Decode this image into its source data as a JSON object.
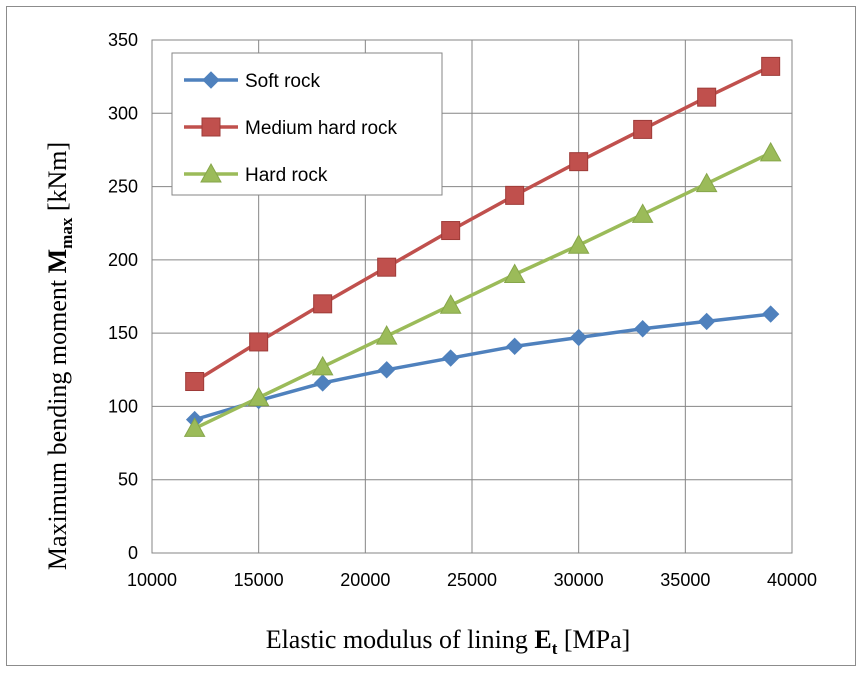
{
  "chart_data": {
    "type": "line",
    "xlabel": {
      "main": "Elastic modulus of lining ",
      "sym": "E",
      "sub": "t",
      "unit": " [MPa]"
    },
    "ylabel": {
      "main": "Maximum bending moment ",
      "sym": "M",
      "sub": "max",
      "unit": " [kNm]"
    },
    "xlim": [
      10000,
      40000
    ],
    "ylim": [
      0,
      350
    ],
    "xticks": [
      10000,
      15000,
      20000,
      25000,
      30000,
      35000,
      40000
    ],
    "yticks": [
      0,
      50,
      100,
      150,
      200,
      250,
      300,
      350
    ],
    "grid": true,
    "legend_position": "top-left",
    "x": [
      12000,
      15000,
      18000,
      21000,
      24000,
      27000,
      30000,
      33000,
      36000,
      39000
    ],
    "series": [
      {
        "name": "Soft rock",
        "color": "#4f81bd",
        "marker": "diamond",
        "values": [
          91,
          104,
          116,
          125,
          133,
          141,
          147,
          153,
          158,
          163
        ]
      },
      {
        "name": "Medium hard rock",
        "color": "#c0504d",
        "marker": "square",
        "values": [
          117,
          144,
          170,
          195,
          220,
          244,
          267,
          289,
          311,
          332
        ]
      },
      {
        "name": "Hard rock",
        "color": "#9bbb59",
        "marker": "triangle",
        "values": [
          85,
          106,
          127,
          148,
          169,
          190,
          210,
          231,
          252,
          273
        ]
      }
    ]
  }
}
